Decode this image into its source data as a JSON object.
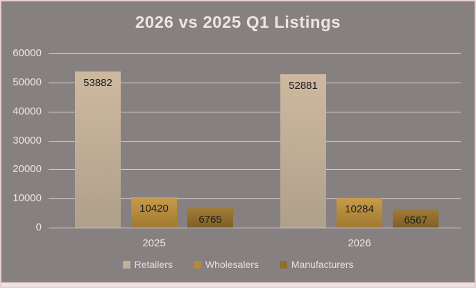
{
  "chart_data": {
    "type": "bar",
    "title": "2026 vs 2025 Q1 Listings",
    "categories": [
      "2025",
      "2026"
    ],
    "series": [
      {
        "name": "Retailers",
        "values": [
          53882,
          52881
        ],
        "color_top": "#CEB9A0",
        "color_bottom": "#AFA08A",
        "legend_color": "#C2B098"
      },
      {
        "name": "Wholesalers",
        "values": [
          10420,
          10284
        ],
        "color_top": "#C79C4C",
        "color_bottom": "#A0792F",
        "legend_color": "#B5893B"
      },
      {
        "name": "Manufacturers",
        "values": [
          6765,
          6567
        ],
        "color_top": "#A17C36",
        "color_bottom": "#7D5F26",
        "legend_color": "#8F6D2C"
      }
    ],
    "ylim": [
      0,
      60000
    ],
    "yticks": [
      0,
      10000,
      20000,
      30000,
      40000,
      50000,
      60000
    ],
    "grid": true,
    "legend_position": "bottom",
    "data_labels_shown": true
  },
  "colors": {
    "background": "#868080",
    "frame_border": "#E7CFD5",
    "bottom_strip": "#F2E1E4",
    "gridline": "#E6D3D8",
    "axis_text": "#F0E3E3",
    "title_text": "#EDE5E5",
    "data_label_text": "#1C1C1C"
  }
}
